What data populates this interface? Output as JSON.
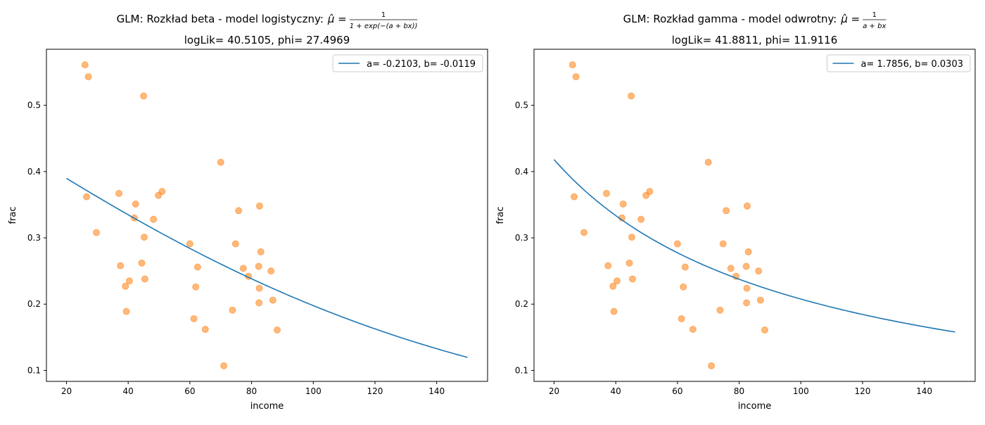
{
  "chart_data": [
    {
      "type": "scatter",
      "title": "GLM: Rozkład beta - model logistyczny: μ̂ = 1 / (1 + exp(−(a + bx)))",
      "title_text": "GLM: Rozkład beta - model logistyczny:",
      "formula": {
        "lhs": "μ̂ =",
        "numerator": "1",
        "denominator": "1 + exp(−(a + bx))"
      },
      "subtitle": "logLik= 40.5105, phi= 27.4969",
      "xlabel": "income",
      "ylabel": "frac",
      "xlim": [
        13.5,
        156.5
      ],
      "ylim": [
        0.0835,
        0.5845
      ],
      "xticks": [
        20,
        40,
        60,
        80,
        100,
        120,
        140
      ],
      "yticks": [
        0.1,
        0.2,
        0.3,
        0.4,
        0.5
      ],
      "grid": false,
      "legend_position": "top-right",
      "series": [
        {
          "name": "a= -0.2103, b= -0.0119",
          "kind": "line",
          "color": "#1f77b4",
          "x_range": [
            20,
            150
          ],
          "model": "logistic",
          "a": -0.2103,
          "b": -0.0119
        },
        {
          "kind": "scatter",
          "color": "#ff7f0e",
          "alpha": 0.55,
          "points": [
            [
              26,
              0.561
            ],
            [
              27.1,
              0.543
            ],
            [
              45,
              0.514
            ],
            [
              26.5,
              0.362
            ],
            [
              29.7,
              0.308
            ],
            [
              37,
              0.367
            ],
            [
              42.4,
              0.351
            ],
            [
              42,
              0.33
            ],
            [
              37.5,
              0.258
            ],
            [
              39.1,
              0.227
            ],
            [
              39.4,
              0.189
            ],
            [
              40.4,
              0.235
            ],
            [
              44.4,
              0.262
            ],
            [
              45.2,
              0.301
            ],
            [
              45.4,
              0.238
            ],
            [
              48.2,
              0.328
            ],
            [
              49.8,
              0.364
            ],
            [
              51,
              0.37
            ],
            [
              60,
              0.291
            ],
            [
              61.3,
              0.178
            ],
            [
              61.9,
              0.226
            ],
            [
              62.5,
              0.256
            ],
            [
              65,
              0.162
            ],
            [
              70,
              0.414
            ],
            [
              71,
              0.107
            ],
            [
              73.8,
              0.191
            ],
            [
              74.8,
              0.291
            ],
            [
              75.8,
              0.341
            ],
            [
              77.3,
              0.254
            ],
            [
              79,
              0.242
            ],
            [
              82.3,
              0.257
            ],
            [
              82.5,
              0.224
            ],
            [
              82.6,
              0.348
            ],
            [
              82.4,
              0.202
            ],
            [
              83,
              0.279
            ],
            [
              86.3,
              0.25
            ],
            [
              86.9,
              0.206
            ],
            [
              88.3,
              0.161
            ]
          ]
        }
      ]
    },
    {
      "type": "scatter",
      "title": "GLM: Rozkład gamma - model odwrotny: μ̂ = 1 / (a + bx)",
      "title_text": "GLM: Rozkład gamma - model odwrotny:",
      "formula": {
        "lhs": "μ̂ =",
        "numerator": "1",
        "denominator": "a + bx"
      },
      "subtitle": "logLik= 41.8811, phi= 11.9116",
      "xlabel": "income",
      "ylabel": "frac",
      "xlim": [
        13.5,
        156.5
      ],
      "ylim": [
        0.0835,
        0.5845
      ],
      "xticks": [
        20,
        40,
        60,
        80,
        100,
        120,
        140
      ],
      "yticks": [
        0.1,
        0.2,
        0.3,
        0.4,
        0.5
      ],
      "grid": false,
      "legend_position": "top-right",
      "series": [
        {
          "name": "a= 1.7856, b= 0.0303",
          "kind": "line",
          "color": "#1f77b4",
          "x_range": [
            20,
            150
          ],
          "model": "inverse",
          "a": 1.7856,
          "b": 0.0303
        },
        {
          "kind": "scatter",
          "color": "#ff7f0e",
          "alpha": 0.55,
          "points": [
            [
              26,
              0.561
            ],
            [
              27.1,
              0.543
            ],
            [
              45,
              0.514
            ],
            [
              26.5,
              0.362
            ],
            [
              29.7,
              0.308
            ],
            [
              37,
              0.367
            ],
            [
              42.4,
              0.351
            ],
            [
              42,
              0.33
            ],
            [
              37.5,
              0.258
            ],
            [
              39.1,
              0.227
            ],
            [
              39.4,
              0.189
            ],
            [
              40.4,
              0.235
            ],
            [
              44.4,
              0.262
            ],
            [
              45.2,
              0.301
            ],
            [
              45.4,
              0.238
            ],
            [
              48.2,
              0.328
            ],
            [
              49.8,
              0.364
            ],
            [
              51,
              0.37
            ],
            [
              60,
              0.291
            ],
            [
              61.3,
              0.178
            ],
            [
              61.9,
              0.226
            ],
            [
              62.5,
              0.256
            ],
            [
              65,
              0.162
            ],
            [
              70,
              0.414
            ],
            [
              71,
              0.107
            ],
            [
              73.8,
              0.191
            ],
            [
              74.8,
              0.291
            ],
            [
              75.8,
              0.341
            ],
            [
              77.3,
              0.254
            ],
            [
              79,
              0.242
            ],
            [
              82.3,
              0.257
            ],
            [
              82.5,
              0.224
            ],
            [
              82.6,
              0.348
            ],
            [
              82.4,
              0.202
            ],
            [
              83,
              0.279
            ],
            [
              86.3,
              0.25
            ],
            [
              86.9,
              0.206
            ],
            [
              88.3,
              0.161
            ]
          ]
        }
      ]
    }
  ]
}
